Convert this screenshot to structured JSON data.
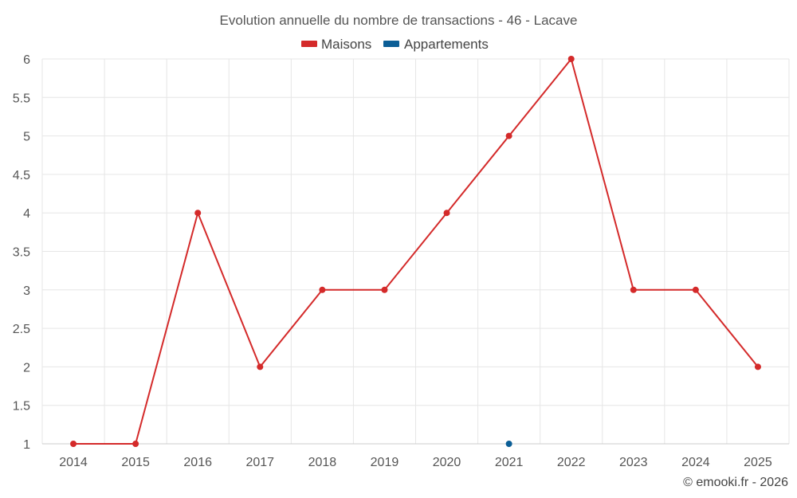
{
  "chart_data": {
    "type": "line",
    "title": "Evolution annuelle du nombre de transactions - 46 - Lacave",
    "categories": [
      "2014",
      "2015",
      "2016",
      "2017",
      "2018",
      "2019",
      "2020",
      "2021",
      "2022",
      "2023",
      "2024",
      "2025"
    ],
    "series": [
      {
        "name": "Maisons",
        "color": "#d42a2a",
        "values": [
          1,
          1,
          4,
          2,
          3,
          3,
          4,
          5,
          6,
          3,
          3,
          2
        ]
      },
      {
        "name": "Appartements",
        "color": "#0b5e96",
        "values": [
          null,
          null,
          null,
          null,
          null,
          null,
          null,
          1,
          null,
          null,
          null,
          null
        ]
      }
    ],
    "ylim": [
      1,
      6
    ],
    "yticks": [
      1,
      1.5,
      2,
      2.5,
      3,
      3.5,
      4,
      4.5,
      5,
      5.5,
      6
    ],
    "ytick_labels": [
      "1",
      "1.5",
      "2",
      "2.5",
      "3",
      "3.5",
      "4",
      "4.5",
      "5",
      "5.5",
      "6"
    ],
    "legend_position": "top-center",
    "grid": true,
    "xlabel": "",
    "ylabel": ""
  },
  "credit": "© emooki.fr - 2026"
}
